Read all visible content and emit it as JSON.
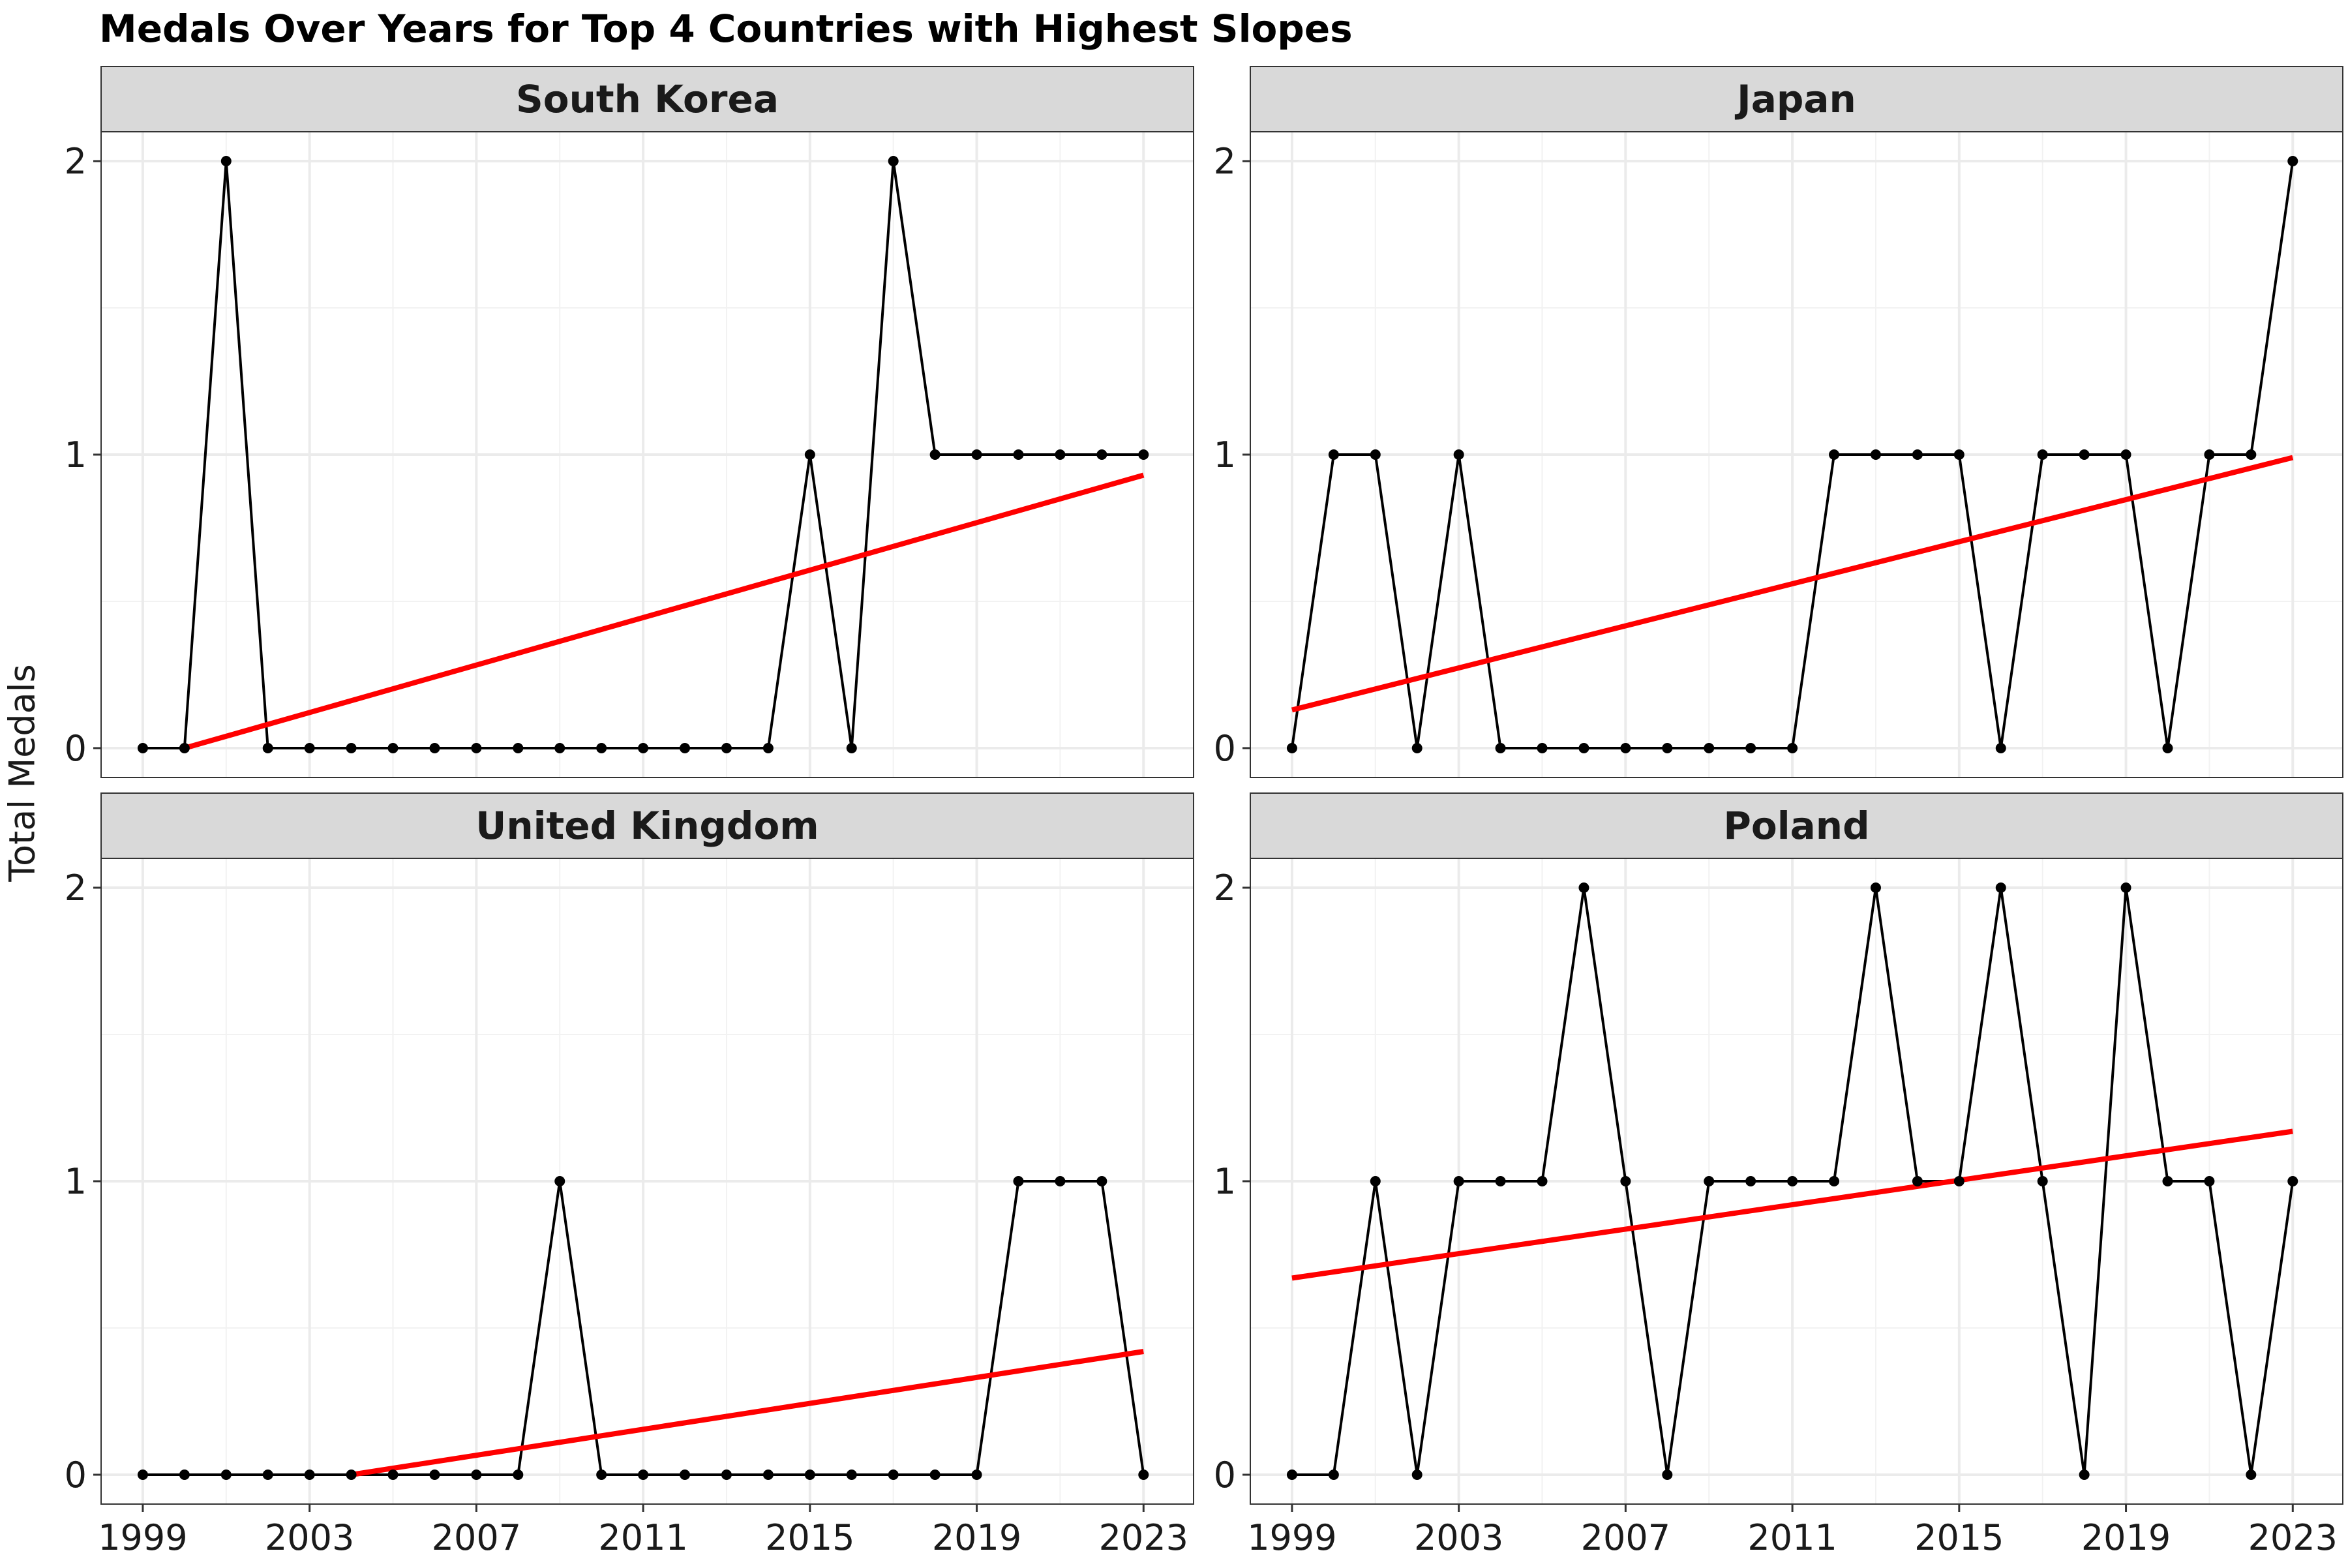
{
  "chart_data": {
    "type": "line",
    "title": "Medals Over Years for Top 4 Countries with Highest Slopes",
    "ylabel": "Total Medals",
    "xlabel": "",
    "xlim": [
      1998,
      2024.2
    ],
    "ylim": [
      -0.1,
      2.1
    ],
    "x_ticks": [
      1999,
      2003,
      2007,
      2011,
      2015,
      2019,
      2023
    ],
    "y_ticks": [
      0,
      1,
      2
    ],
    "grid": true,
    "legend": "none",
    "line_color": "#000000",
    "trend_color": "#ff0000",
    "strip_color": "#d9d9d9",
    "panels": [
      {
        "name": "South Korea",
        "x": [
          1999,
          2000,
          2001,
          2002,
          2003,
          2004,
          2005,
          2006,
          2007,
          2008,
          2009,
          2010,
          2011,
          2012,
          2013,
          2014,
          2015,
          2016,
          2017,
          2018,
          2019,
          2020,
          2021,
          2022,
          2023
        ],
        "y": [
          0,
          0,
          2,
          0,
          0,
          0,
          0,
          0,
          0,
          0,
          0,
          0,
          0,
          0,
          0,
          0,
          1,
          0,
          2,
          1,
          1,
          1,
          1,
          1,
          1
        ],
        "trend": {
          "x": [
            2000,
            2023
          ],
          "y": [
            0.0,
            0.93
          ]
        }
      },
      {
        "name": "Japan",
        "x": [
          1999,
          2000,
          2001,
          2002,
          2003,
          2004,
          2005,
          2006,
          2007,
          2008,
          2009,
          2010,
          2011,
          2012,
          2013,
          2014,
          2015,
          2016,
          2017,
          2018,
          2019,
          2020,
          2021,
          2022,
          2023
        ],
        "y": [
          0,
          1,
          1,
          0,
          1,
          0,
          0,
          0,
          0,
          0,
          0,
          0,
          0,
          1,
          1,
          1,
          1,
          0,
          1,
          1,
          1,
          0,
          1,
          1,
          2
        ],
        "trend": {
          "x": [
            1999,
            2023
          ],
          "y": [
            0.13,
            0.99
          ]
        }
      },
      {
        "name": "United Kingdom",
        "x": [
          1999,
          2000,
          2001,
          2002,
          2003,
          2004,
          2005,
          2006,
          2007,
          2008,
          2009,
          2010,
          2011,
          2012,
          2013,
          2014,
          2015,
          2016,
          2017,
          2018,
          2019,
          2020,
          2021,
          2022,
          2023
        ],
        "y": [
          0,
          0,
          0,
          0,
          0,
          0,
          0,
          0,
          0,
          0,
          1,
          0,
          0,
          0,
          0,
          0,
          0,
          0,
          0,
          0,
          0,
          1,
          1,
          1,
          0
        ],
        "trend": {
          "x": [
            2004,
            2023
          ],
          "y": [
            0.0,
            0.42
          ]
        }
      },
      {
        "name": "Poland",
        "x": [
          1999,
          2000,
          2001,
          2002,
          2003,
          2004,
          2005,
          2006,
          2007,
          2008,
          2009,
          2010,
          2011,
          2012,
          2013,
          2014,
          2015,
          2016,
          2017,
          2018,
          2019,
          2020,
          2021,
          2022,
          2023
        ],
        "y": [
          0,
          0,
          1,
          0,
          1,
          1,
          1,
          2,
          1,
          0,
          1,
          1,
          1,
          1,
          2,
          1,
          1,
          2,
          1,
          0,
          2,
          1,
          1,
          0,
          1
        ],
        "trend": {
          "x": [
            1999,
            2023
          ],
          "y": [
            0.67,
            1.17
          ]
        }
      }
    ]
  }
}
